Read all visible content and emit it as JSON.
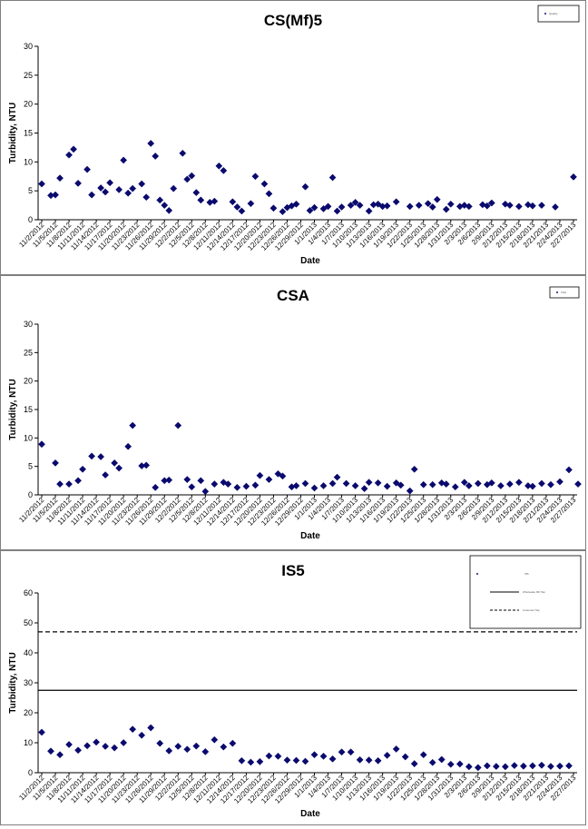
{
  "chart_data": [
    {
      "type": "scatter",
      "title": "CS(Mf)5",
      "xlabel": "Date",
      "ylabel": "Turbidity, NTU",
      "ylim": [
        0,
        30
      ],
      "yticks": [
        0,
        5,
        10,
        15,
        20,
        25,
        30
      ],
      "xticklabels": [
        "11/2/2012",
        "11/5/2012",
        "11/8/2012",
        "11/11/2012",
        "11/14/2012",
        "11/17/2012",
        "11/20/2012",
        "11/23/2012",
        "11/26/2012",
        "11/29/2012",
        "12/2/2012",
        "12/5/2012",
        "12/8/2012",
        "12/11/2012",
        "12/14/2012",
        "12/17/2012",
        "12/20/2012",
        "12/23/2012",
        "12/26/2012",
        "12/29/2012",
        "1/1/2013",
        "1/4/2013",
        "1/7/2013",
        "1/10/2013",
        "1/13/2013",
        "1/16/2013",
        "1/19/2013",
        "1/22/2013",
        "1/25/2013",
        "1/28/2013",
        "1/31/2013",
        "2/3/2013",
        "2/6/2013",
        "2/9/2013",
        "2/12/2013",
        "2/15/2013",
        "2/18/2013",
        "2/21/2013",
        "2/24/2013",
        "2/27/2013"
      ],
      "legend": {
        "placement": "top-right",
        "entries": [
          "Quality"
        ]
      },
      "series": [
        {
          "marker": "diamond",
          "color": "#0a0a6e",
          "x": [
            0,
            2,
            3,
            4,
            6,
            7,
            8,
            10,
            11,
            13,
            14,
            15,
            17,
            18,
            19,
            20,
            22,
            23,
            24,
            25,
            26,
            27,
            28,
            29,
            31,
            32,
            33,
            34,
            35,
            37,
            38,
            39,
            40,
            42,
            43,
            44,
            46,
            47,
            49,
            50,
            51,
            53,
            54,
            55,
            56,
            58,
            59,
            60,
            62,
            63,
            64,
            65,
            66,
            68,
            69,
            70,
            72,
            73,
            74,
            75,
            76,
            78,
            81,
            83,
            85,
            86,
            87,
            89,
            90,
            92,
            93,
            94,
            97,
            98,
            99,
            102,
            103,
            105,
            107,
            108,
            110,
            113,
            117
          ],
          "y": [
            6.2,
            4.2,
            4.3,
            7.2,
            11.2,
            12.2,
            6.3,
            8.7,
            4.3,
            5.5,
            4.8,
            6.4,
            5.2,
            10.3,
            4.6,
            5.4,
            6.2,
            3.9,
            13.2,
            11,
            3.4,
            2.5,
            1.6,
            5.4,
            11.5,
            7,
            7.6,
            4.7,
            3.4,
            3,
            3.2,
            9.3,
            8.5,
            3.1,
            2.2,
            1.5,
            2.8,
            7.5,
            6.2,
            4.5,
            2,
            1.4,
            2.1,
            2.4,
            2.7,
            5.7,
            1.6,
            2.1,
            1.9,
            2.3,
            7.3,
            1.5,
            2.2,
            2.5,
            3,
            2.5,
            1.5,
            2.6,
            2.7,
            2.3,
            2.4,
            3.1,
            2.3,
            2.5,
            2.8,
            2.2,
            3.5,
            1.8,
            2.7,
            2.3,
            2.5,
            2.3,
            2.6,
            2.4,
            2.9,
            2.7,
            2.5,
            2.3,
            2.6,
            2.4,
            2.5,
            2.2,
            7.4
          ]
        }
      ]
    },
    {
      "type": "scatter",
      "title": "CSA",
      "xlabel": "Date",
      "ylabel": "Turbidity, NTU",
      "ylim": [
        0,
        30
      ],
      "yticks": [
        0,
        5,
        10,
        15,
        20,
        25,
        30
      ],
      "xticklabels": [
        "11/2/2012",
        "11/5/2012",
        "11/8/2012",
        "11/11/2012",
        "11/14/2012",
        "11/17/2012",
        "11/20/2012",
        "11/23/2012",
        "11/26/2012",
        "11/29/2012",
        "12/2/2012",
        "12/5/2012",
        "12/8/2012",
        "12/11/2012",
        "12/14/2012",
        "12/17/2012",
        "12/20/2012",
        "12/23/2012",
        "12/26/2012",
        "12/29/2012",
        "1/1/2013",
        "1/4/2013",
        "1/7/2013",
        "1/10/2013",
        "1/13/2013",
        "1/16/2013",
        "1/19/2013",
        "1/22/2013",
        "1/25/2013",
        "1/28/2013",
        "1/31/2013",
        "2/3/2013",
        "2/6/2013",
        "2/9/2013",
        "2/12/2013",
        "2/15/2013",
        "2/18/2013",
        "2/21/2013",
        "2/24/2013",
        "2/27/2013"
      ],
      "legend": {
        "placement": "top-right",
        "entries": [
          "CSA"
        ]
      },
      "series": [
        {
          "marker": "diamond",
          "color": "#0a0a6e",
          "x": [
            0,
            3,
            4,
            6,
            8,
            9,
            11,
            13,
            14,
            16,
            17,
            19,
            20,
            22,
            23,
            25,
            27,
            28,
            30,
            32,
            33,
            35,
            36,
            38,
            40,
            41,
            43,
            45,
            47,
            48,
            50,
            52,
            53,
            55,
            56,
            58,
            60,
            62,
            64,
            65,
            67,
            69,
            71,
            72,
            74,
            76,
            78,
            79,
            81,
            82,
            84,
            86,
            88,
            89,
            91,
            93,
            94,
            96,
            98,
            99,
            101,
            103,
            105,
            107,
            108,
            110,
            112,
            114,
            116,
            118
          ],
          "y": [
            8.9,
            5.6,
            1.9,
            1.9,
            2.5,
            4.5,
            6.8,
            6.7,
            3.5,
            5.6,
            4.7,
            8.5,
            12.2,
            5.1,
            5.2,
            1.3,
            2.5,
            2.6,
            12.2,
            2.7,
            1.4,
            2.5,
            0.6,
            1.9,
            2.2,
            1.9,
            1.3,
            1.5,
            1.7,
            3.4,
            2.7,
            3.7,
            3.3,
            1.4,
            1.6,
            2,
            1.2,
            1.6,
            2,
            3.1,
            2,
            1.6,
            1.1,
            2.2,
            2.1,
            1.5,
            2.1,
            1.7,
            0.7,
            4.5,
            1.8,
            1.8,
            2.1,
            1.9,
            1.4,
            2.2,
            1.6,
            2,
            1.8,
            2.1,
            1.6,
            1.9,
            2.2,
            1.6,
            1.5,
            2,
            1.8,
            2.3,
            4.4,
            1.9
          ]
        }
      ]
    },
    {
      "type": "scatter",
      "title": "IS5",
      "xlabel": "Date",
      "ylabel": "Turbidity, NTU",
      "ylim": [
        0,
        60
      ],
      "yticks": [
        0,
        10,
        20,
        30,
        40,
        50,
        60
      ],
      "xticklabels": [
        "11/2/2012",
        "11/5/2012",
        "11/8/2012",
        "11/11/2012",
        "11/14/2012",
        "11/17/2012",
        "11/20/2012",
        "11/23/2012",
        "11/26/2012",
        "11/29/2012",
        "12/2/2012",
        "12/5/2012",
        "12/8/2012",
        "12/11/2012",
        "12/14/2012",
        "12/17/2012",
        "12/20/2012",
        "12/23/2012",
        "12/26/2012",
        "12/29/2012",
        "1/1/2013",
        "1/4/2013",
        "1/7/2013",
        "1/10/2013",
        "1/13/2013",
        "1/16/2013",
        "1/19/2013",
        "1/22/2013",
        "1/25/2013",
        "1/28/2013",
        "1/31/2013",
        "2/3/2013",
        "2/6/2013",
        "2/9/2013",
        "2/12/2013",
        "2/15/2013",
        "2/18/2013",
        "2/21/2013",
        "2/24/2013",
        "2/27/2013"
      ],
      "legend": {
        "placement": "top-right",
        "entries": [
          "IS5",
          "Wholesale Mfr Tap",
          "Customer Tap"
        ]
      },
      "hlines": [
        {
          "y": 27.5,
          "style": "solid"
        },
        {
          "y": 47,
          "style": "dashed"
        }
      ],
      "series": [
        {
          "marker": "diamond",
          "color": "#0a0a6e",
          "x": [
            0,
            2,
            4,
            6,
            8,
            10,
            12,
            14,
            16,
            18,
            20,
            22,
            24,
            26,
            28,
            30,
            32,
            34,
            36,
            38,
            40,
            42,
            44,
            46,
            48,
            50,
            52,
            54,
            56,
            58,
            60,
            62,
            64,
            66,
            68,
            70,
            72,
            74,
            76,
            78,
            80,
            82,
            84,
            86,
            88,
            90,
            92,
            94,
            96,
            98,
            100,
            102,
            104,
            106,
            108,
            110,
            112,
            114,
            116
          ],
          "y": [
            13.5,
            7.2,
            6,
            9.4,
            7.5,
            9,
            10.2,
            8.8,
            8.3,
            10,
            14.5,
            12.5,
            15,
            9.8,
            7.3,
            8.8,
            7.8,
            8.9,
            7,
            11,
            8.6,
            9.8,
            4,
            3.5,
            3.7,
            5.6,
            5.5,
            4.2,
            4.1,
            3.8,
            6,
            5.5,
            4.6,
            6.9,
            6.9,
            4.3,
            4.2,
            4,
            5.8,
            7.9,
            5.3,
            3,
            6,
            3.4,
            4.4,
            2.8,
            2.9,
            2,
            1.7,
            2.3,
            2.1,
            2,
            2.4,
            2.2,
            2.3,
            2.5,
            2.1,
            2.2,
            2.3
          ]
        }
      ]
    }
  ]
}
